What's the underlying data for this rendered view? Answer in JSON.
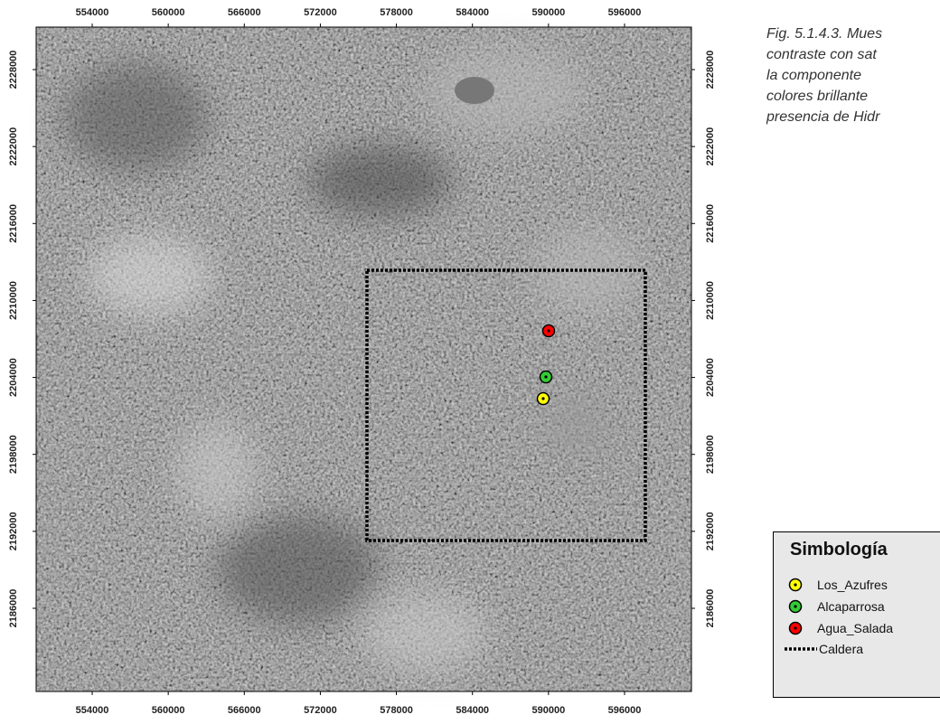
{
  "map": {
    "xlim": [
      549579,
      601277
    ],
    "ylim": [
      2179516,
      2231312
    ],
    "xticks": [
      554000,
      560000,
      566000,
      572000,
      578000,
      584000,
      590000,
      596000
    ],
    "yticks": [
      2186000,
      2192000,
      2198000,
      2204000,
      2210000,
      2216000,
      2222000,
      2228000
    ],
    "points": [
      {
        "name": "Los_Azufres",
        "color": "#ffff00",
        "x": 589582,
        "y": 2202348
      },
      {
        "name": "Alcaparrosa",
        "color": "#33cc33",
        "x": 589796,
        "y": 2204039
      },
      {
        "name": "Agua_Salada",
        "color": "#ff0000",
        "x": 590010,
        "y": 2207633
      }
    ],
    "caldera": {
      "name": "Caldera",
      "x": [
        575677,
        597640
      ],
      "y": [
        2191284,
        2212355
      ]
    },
    "legend_title": "Simbología",
    "caption": [
      "Fig. 5.1.4.3. Mues",
      "contraste con sat",
      "la componente",
      "colores brillante",
      "presencia de Hidr"
    ]
  }
}
